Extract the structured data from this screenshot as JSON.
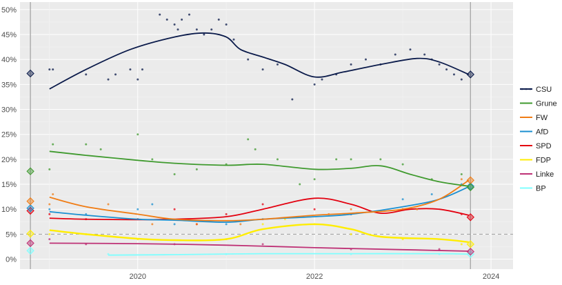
{
  "chart_data": {
    "type": "line",
    "title": "",
    "xlabel": "",
    "ylabel": "",
    "x_ticks": [
      "2020",
      "2022",
      "2024"
    ],
    "y_ticks": [
      "0%",
      "5%",
      "10%",
      "15%",
      "20%",
      "25%",
      "30%",
      "35%",
      "40%",
      "45%",
      "50%"
    ],
    "xlim": [
      "2018-09-01",
      "2024-04-01"
    ],
    "ylim": [
      -0.02,
      0.515
    ],
    "grid": true,
    "legend_position": "right",
    "threshold": {
      "value": 0.05,
      "style": "dashed"
    },
    "election_date_left": "2018-10-14",
    "election_date_right": "2023-10-08",
    "series": [
      {
        "name": "CSU",
        "color": "#0a1a4a",
        "trend": [
          [
            "2019-01-01",
            0.341
          ],
          [
            "2019-06-01",
            0.38
          ],
          [
            "2019-12-01",
            0.42
          ],
          [
            "2020-06-01",
            0.445
          ],
          [
            "2020-10-01",
            0.453
          ],
          [
            "2021-01-01",
            0.445
          ],
          [
            "2021-03-01",
            0.42
          ],
          [
            "2021-06-01",
            0.405
          ],
          [
            "2021-09-01",
            0.39
          ],
          [
            "2022-01-01",
            0.365
          ],
          [
            "2022-05-01",
            0.375
          ],
          [
            "2022-10-01",
            0.39
          ],
          [
            "2023-03-01",
            0.402
          ],
          [
            "2023-06-01",
            0.395
          ],
          [
            "2023-10-01",
            0.37
          ]
        ],
        "polls": [
          [
            "2019-01-01",
            0.38
          ],
          [
            "2019-01-15",
            0.38
          ],
          [
            "2019-06-01",
            0.37
          ],
          [
            "2019-09-01",
            0.36
          ],
          [
            "2019-10-01",
            0.37
          ],
          [
            "2019-12-01",
            0.38
          ],
          [
            "2020-01-01",
            0.36
          ],
          [
            "2020-01-20",
            0.38
          ],
          [
            "2020-04-01",
            0.49
          ],
          [
            "2020-05-01",
            0.48
          ],
          [
            "2020-06-01",
            0.47
          ],
          [
            "2020-06-15",
            0.46
          ],
          [
            "2020-07-01",
            0.48
          ],
          [
            "2020-08-01",
            0.49
          ],
          [
            "2020-09-01",
            0.46
          ],
          [
            "2020-10-01",
            0.45
          ],
          [
            "2020-11-01",
            0.46
          ],
          [
            "2020-12-01",
            0.48
          ],
          [
            "2021-01-01",
            0.47
          ],
          [
            "2021-02-01",
            0.44
          ],
          [
            "2021-04-01",
            0.4
          ],
          [
            "2021-06-01",
            0.38
          ],
          [
            "2021-08-01",
            0.39
          ],
          [
            "2021-10-01",
            0.32
          ],
          [
            "2022-01-01",
            0.35
          ],
          [
            "2022-02-01",
            0.36
          ],
          [
            "2022-04-01",
            0.37
          ],
          [
            "2022-06-01",
            0.39
          ],
          [
            "2022-08-01",
            0.4
          ],
          [
            "2022-10-01",
            0.39
          ],
          [
            "2022-12-01",
            0.41
          ],
          [
            "2023-02-01",
            0.42
          ],
          [
            "2023-04-01",
            0.41
          ],
          [
            "2023-05-01",
            0.4
          ],
          [
            "2023-06-01",
            0.39
          ],
          [
            "2023-07-01",
            0.38
          ],
          [
            "2023-08-01",
            0.37
          ],
          [
            "2023-09-01",
            0.36
          ]
        ],
        "result_start": 0.372,
        "result_end": 0.37
      },
      {
        "name": "Grune",
        "color": "#3f9a2e",
        "trend": [
          [
            "2019-01-01",
            0.216
          ],
          [
            "2019-06-01",
            0.208
          ],
          [
            "2020-01-01",
            0.198
          ],
          [
            "2020-06-01",
            0.192
          ],
          [
            "2021-01-01",
            0.188
          ],
          [
            "2021-06-01",
            0.19
          ],
          [
            "2022-01-01",
            0.18
          ],
          [
            "2022-06-01",
            0.182
          ],
          [
            "2022-10-01",
            0.187
          ],
          [
            "2023-02-01",
            0.17
          ],
          [
            "2023-06-01",
            0.155
          ],
          [
            "2023-10-01",
            0.146
          ]
        ],
        "polls": [
          [
            "2019-01-01",
            0.18
          ],
          [
            "2019-01-15",
            0.23
          ],
          [
            "2019-06-01",
            0.23
          ],
          [
            "2019-08-01",
            0.22
          ],
          [
            "2020-01-01",
            0.25
          ],
          [
            "2020-03-01",
            0.2
          ],
          [
            "2020-06-01",
            0.17
          ],
          [
            "2020-09-01",
            0.18
          ],
          [
            "2021-01-01",
            0.19
          ],
          [
            "2021-04-01",
            0.24
          ],
          [
            "2021-05-01",
            0.22
          ],
          [
            "2021-08-01",
            0.2
          ],
          [
            "2021-11-01",
            0.15
          ],
          [
            "2022-01-01",
            0.16
          ],
          [
            "2022-04-01",
            0.2
          ],
          [
            "2022-06-01",
            0.2
          ],
          [
            "2022-10-01",
            0.2
          ],
          [
            "2023-01-01",
            0.19
          ],
          [
            "2023-05-01",
            0.16
          ],
          [
            "2023-09-01",
            0.17
          ]
        ],
        "result_start": 0.176,
        "result_end": 0.144
      },
      {
        "name": "FW",
        "color": "#f07c14",
        "trend": [
          [
            "2019-01-01",
            0.124
          ],
          [
            "2019-06-01",
            0.105
          ],
          [
            "2020-01-01",
            0.09
          ],
          [
            "2020-06-01",
            0.08
          ],
          [
            "2021-01-01",
            0.077
          ],
          [
            "2021-06-01",
            0.08
          ],
          [
            "2022-01-01",
            0.088
          ],
          [
            "2022-06-01",
            0.092
          ],
          [
            "2023-01-01",
            0.1
          ],
          [
            "2023-06-01",
            0.12
          ],
          [
            "2023-10-01",
            0.158
          ]
        ],
        "polls": [
          [
            "2019-01-01",
            0.11
          ],
          [
            "2019-01-15",
            0.13
          ],
          [
            "2019-09-01",
            0.11
          ],
          [
            "2020-03-01",
            0.07
          ],
          [
            "2020-09-01",
            0.07
          ],
          [
            "2021-03-01",
            0.07
          ],
          [
            "2022-03-01",
            0.09
          ],
          [
            "2022-06-01",
            0.1
          ],
          [
            "2023-03-01",
            0.1
          ],
          [
            "2023-09-01",
            0.16
          ]
        ],
        "result_start": 0.116,
        "result_end": 0.158
      },
      {
        "name": "AfD",
        "color": "#1a8fd0",
        "trend": [
          [
            "2019-01-01",
            0.095
          ],
          [
            "2019-06-01",
            0.088
          ],
          [
            "2020-01-01",
            0.08
          ],
          [
            "2020-06-01",
            0.078
          ],
          [
            "2021-01-01",
            0.074
          ],
          [
            "2021-06-01",
            0.08
          ],
          [
            "2022-01-01",
            0.085
          ],
          [
            "2022-06-01",
            0.09
          ],
          [
            "2023-01-01",
            0.105
          ],
          [
            "2023-06-01",
            0.12
          ],
          [
            "2023-10-01",
            0.145
          ]
        ],
        "polls": [
          [
            "2019-01-01",
            0.1
          ],
          [
            "2019-06-01",
            0.09
          ],
          [
            "2020-01-01",
            0.1
          ],
          [
            "2020-03-01",
            0.11
          ],
          [
            "2020-06-01",
            0.07
          ],
          [
            "2021-01-01",
            0.07
          ],
          [
            "2021-06-01",
            0.08
          ],
          [
            "2022-06-01",
            0.09
          ],
          [
            "2023-01-01",
            0.12
          ],
          [
            "2023-05-01",
            0.13
          ],
          [
            "2023-09-01",
            0.15
          ]
        ],
        "result_start": 0.102,
        "result_end": 0.146
      },
      {
        "name": "SPD",
        "color": "#e3000f",
        "trend": [
          [
            "2019-01-01",
            0.082
          ],
          [
            "2019-06-01",
            0.08
          ],
          [
            "2020-01-01",
            0.079
          ],
          [
            "2020-06-01",
            0.08
          ],
          [
            "2021-01-01",
            0.085
          ],
          [
            "2021-06-01",
            0.1
          ],
          [
            "2022-01-01",
            0.122
          ],
          [
            "2022-06-01",
            0.11
          ],
          [
            "2022-10-01",
            0.092
          ],
          [
            "2023-02-01",
            0.1
          ],
          [
            "2023-06-01",
            0.1
          ],
          [
            "2023-10-01",
            0.088
          ]
        ],
        "polls": [
          [
            "2019-01-01",
            0.09
          ],
          [
            "2019-06-01",
            0.08
          ],
          [
            "2020-01-01",
            0.08
          ],
          [
            "2020-06-01",
            0.1
          ],
          [
            "2020-09-01",
            0.07
          ],
          [
            "2021-01-01",
            0.09
          ],
          [
            "2021-06-01",
            0.11
          ],
          [
            "2022-01-01",
            0.1
          ],
          [
            "2022-06-01",
            0.09
          ],
          [
            "2023-01-01",
            0.1
          ],
          [
            "2023-09-01",
            0.09
          ]
        ],
        "result_start": 0.097,
        "result_end": 0.084
      },
      {
        "name": "FDP",
        "color": "#ffed00",
        "trend": [
          [
            "2019-01-01",
            0.058
          ],
          [
            "2019-06-01",
            0.05
          ],
          [
            "2020-01-01",
            0.041
          ],
          [
            "2020-06-01",
            0.038
          ],
          [
            "2021-01-01",
            0.04
          ],
          [
            "2021-06-01",
            0.06
          ],
          [
            "2022-01-01",
            0.07
          ],
          [
            "2022-06-01",
            0.06
          ],
          [
            "2022-10-01",
            0.045
          ],
          [
            "2023-06-01",
            0.04
          ],
          [
            "2023-10-01",
            0.034
          ]
        ],
        "polls": [
          [
            "2019-01-01",
            0.05
          ],
          [
            "2019-06-01",
            0.05
          ],
          [
            "2020-01-01",
            0.04
          ],
          [
            "2021-01-01",
            0.04
          ],
          [
            "2021-06-01",
            0.07
          ],
          [
            "2021-09-01",
            0.08
          ],
          [
            "2022-01-01",
            0.07
          ],
          [
            "2022-06-01",
            0.05
          ],
          [
            "2023-01-01",
            0.04
          ],
          [
            "2023-09-01",
            0.03
          ]
        ],
        "result_start": 0.051,
        "result_end": 0.03
      },
      {
        "name": "Linke",
        "color": "#be3075",
        "trend": [
          [
            "2019-01-01",
            0.032
          ],
          [
            "2020-01-01",
            0.031
          ],
          [
            "2021-01-01",
            0.028
          ],
          [
            "2022-01-01",
            0.023
          ],
          [
            "2023-01-01",
            0.019
          ],
          [
            "2023-10-01",
            0.016
          ]
        ],
        "polls": [
          [
            "2019-01-01",
            0.04
          ],
          [
            "2019-06-01",
            0.03
          ],
          [
            "2020-06-01",
            0.03
          ],
          [
            "2021-06-01",
            0.03
          ],
          [
            "2022-06-01",
            0.02
          ],
          [
            "2023-06-01",
            0.02
          ]
        ],
        "result_start": 0.032,
        "result_end": 0.015
      },
      {
        "name": "BP",
        "color": "#7fffff",
        "trend": [
          [
            "2019-09-01",
            0.008
          ],
          [
            "2020-06-01",
            0.009
          ],
          [
            "2021-06-01",
            0.011
          ],
          [
            "2022-06-01",
            0.011
          ],
          [
            "2023-06-01",
            0.011
          ],
          [
            "2023-10-01",
            0.01
          ]
        ],
        "polls": [
          [
            "2019-09-01",
            0.01
          ],
          [
            "2021-01-01",
            0.01
          ],
          [
            "2022-06-01",
            0.01
          ],
          [
            "2023-06-01",
            0.01
          ]
        ],
        "result_start": 0.017,
        "result_end": 0.01
      }
    ]
  }
}
